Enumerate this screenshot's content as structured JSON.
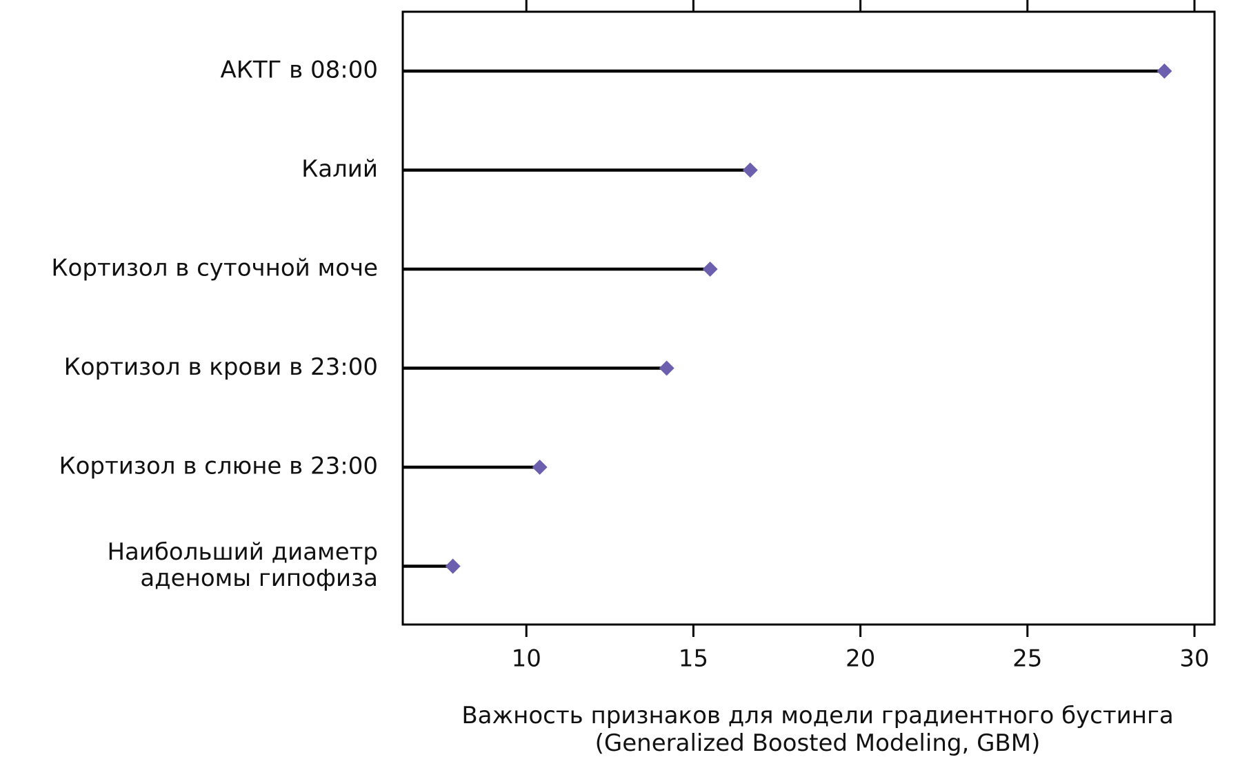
{
  "chart_data": {
    "type": "lollipop",
    "orientation": "horizontal",
    "categories": [
      [
        "АКТГ в 08:00"
      ],
      [
        "Калий"
      ],
      [
        "Кортизол в суточной моче"
      ],
      [
        "Кортизол в крови в 23:00"
      ],
      [
        "Кортизол в слюне в 23:00"
      ],
      [
        "Наибольший диаметр",
        "аденомы гипофиза"
      ]
    ],
    "values": [
      29.1,
      16.7,
      15.5,
      14.2,
      10.4,
      7.8
    ],
    "xlabel": [
      "Важность признаков для модели градиентного бустинга",
      "(Generalized Boosted Modeling, GBM)"
    ],
    "xlim": [
      6.3,
      30.6
    ],
    "xticks": [
      10,
      15,
      20,
      25,
      30
    ],
    "marker": "diamond",
    "marker_color": "#6b5fae",
    "line_color": "#000000",
    "grid": false
  }
}
